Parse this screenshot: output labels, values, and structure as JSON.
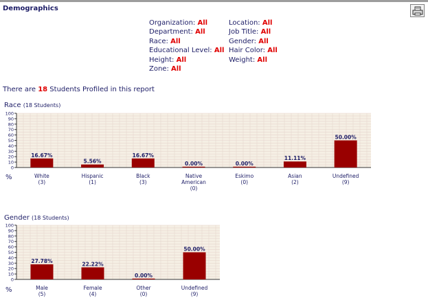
{
  "section_title": "Demographics",
  "print_icon": "printer-icon",
  "filters": [
    {
      "label": "Organization:",
      "value": "All"
    },
    {
      "label": "Location:",
      "value": "All"
    },
    {
      "label": "Department:",
      "value": "All"
    },
    {
      "label": "Job Title:",
      "value": "All"
    },
    {
      "label": "Race:",
      "value": "All"
    },
    {
      "label": "Gender:",
      "value": "All"
    },
    {
      "label": "Educational Level:",
      "value": "All"
    },
    {
      "label": "Hair Color:",
      "value": "All"
    },
    {
      "label": "Height:",
      "value": "All"
    },
    {
      "label": "Weight:",
      "value": "All"
    },
    {
      "label": "Zone:",
      "value": "All"
    }
  ],
  "summary": {
    "prefix": "There are",
    "count": "18",
    "suffix": "Students Profiled in this report"
  },
  "colors": {
    "bar": "#990000",
    "grid_bg": "#f5efe4",
    "grid_line": "#e7d6ce",
    "text": "#1c1c66",
    "value_highlight": "#e00000"
  },
  "chart_data": [
    {
      "type": "bar",
      "title": "Race",
      "subtitle": "(18 Students)",
      "ylabel": "%",
      "ylim": [
        0,
        100
      ],
      "yticks": [
        0,
        10,
        20,
        30,
        40,
        50,
        60,
        70,
        80,
        90,
        100
      ],
      "grid": true,
      "categories": [
        {
          "lines": [
            "White"
          ],
          "count": "(3)"
        },
        {
          "lines": [
            "Hispanic"
          ],
          "count": "(1)"
        },
        {
          "lines": [
            "Black"
          ],
          "count": "(3)"
        },
        {
          "lines": [
            "Native",
            "American"
          ],
          "count": "(0)"
        },
        {
          "lines": [
            "Eskimo"
          ],
          "count": "(0)"
        },
        {
          "lines": [
            "Asian"
          ],
          "count": "(2)"
        },
        {
          "lines": [
            "Undefined"
          ],
          "count": "(9)"
        }
      ],
      "values": [
        16.67,
        5.56,
        16.67,
        0.0,
        0.0,
        11.11,
        50.0
      ],
      "labels": [
        "16.67%",
        "5.56%",
        "16.67%",
        "0.00%",
        "0.00%",
        "11.11%",
        "50.00%"
      ]
    },
    {
      "type": "bar",
      "title": "Gender",
      "subtitle": "(18 Students)",
      "ylabel": "%",
      "ylim": [
        0,
        100
      ],
      "yticks": [
        0,
        10,
        20,
        30,
        40,
        50,
        60,
        70,
        80,
        90,
        100
      ],
      "grid": true,
      "categories": [
        {
          "lines": [
            "Male"
          ],
          "count": "(5)"
        },
        {
          "lines": [
            "Female"
          ],
          "count": "(4)"
        },
        {
          "lines": [
            "Other"
          ],
          "count": "(0)"
        },
        {
          "lines": [
            "Undefined"
          ],
          "count": "(9)"
        }
      ],
      "values": [
        27.78,
        22.22,
        0.0,
        50.0
      ],
      "labels": [
        "27.78%",
        "22.22%",
        "0.00%",
        "50.00%"
      ]
    }
  ]
}
